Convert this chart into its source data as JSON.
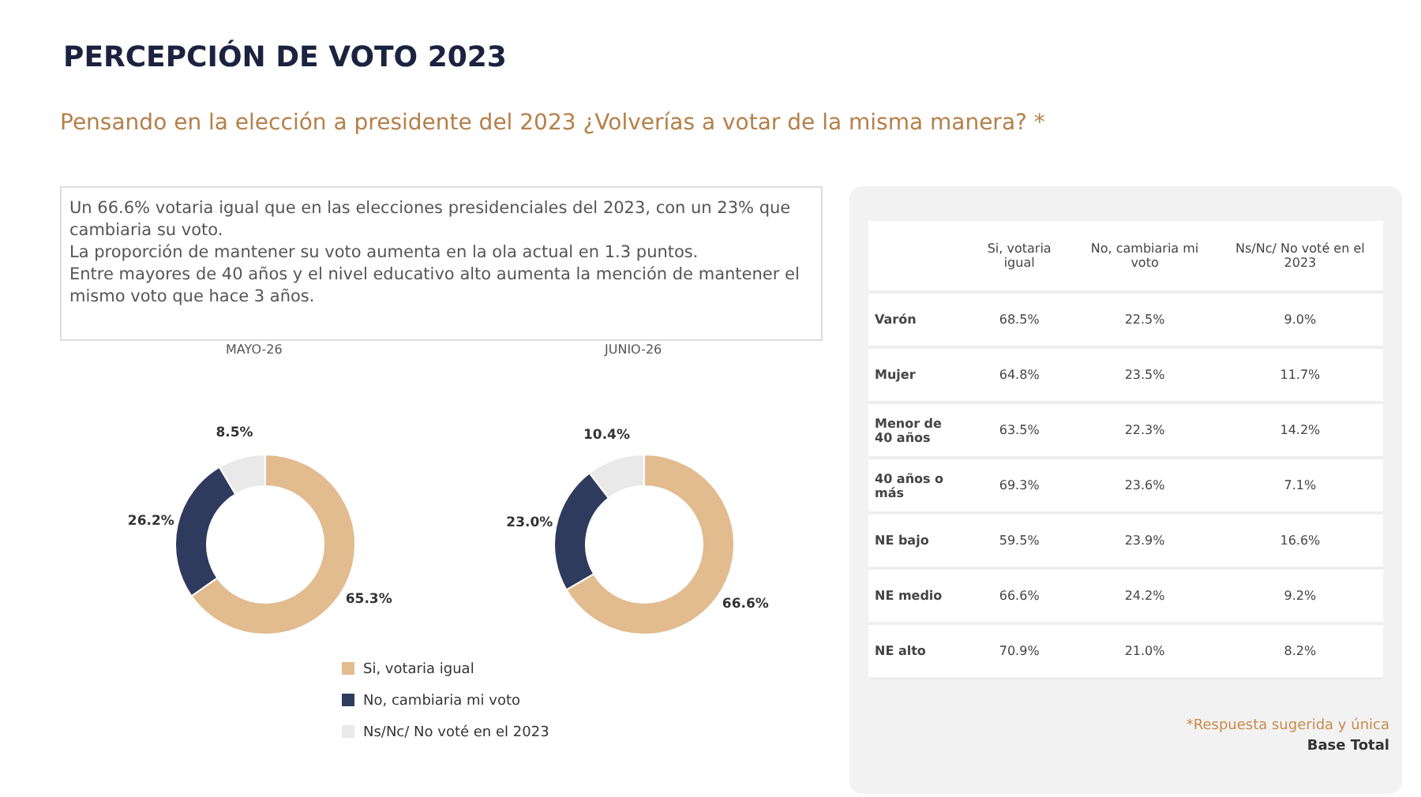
{
  "chart_data": [
    {
      "type": "other",
      "title": "PERCEPCIÓN DE VOTO 2023",
      "subtitle": "Pensando en la elección a presidente del 2023 ¿Volverías a votar de la misma manera? *",
      "annotations": [
        "Un 66.6% votaria igual que en las elecciones presidenciales del 2023, con un 23% que cambiaria su voto.",
        "La proporción de mantener su voto aumenta en la ola actual en 1.3 puntos.",
        "Entre mayores de 40 años y el nivel educativo alto aumenta la mención de mantener el mismo voto que hace 3 años."
      ]
    },
    {
      "type": "donut",
      "title": "MAYO-26",
      "categories": [
        "Si, votaria igual",
        "No, cambiaria mi voto",
        "Ns/Nc/ No voté en el 2023"
      ],
      "values": [
        65.3,
        26.2,
        8.5
      ],
      "value_labels": [
        "65.3%",
        "26.2%",
        "8.5%"
      ],
      "colors": [
        "#e2bb8e",
        "#2e3b5e",
        "#e9e9e9"
      ],
      "legend": "bottom"
    },
    {
      "type": "donut",
      "title": "JUNIO-26",
      "categories": [
        null,
        null,
        null
      ],
      "values": [
        66.6,
        23.0,
        10.4
      ],
      "value_labels": [
        "66.6%",
        "23.0%",
        "10.4%"
      ],
      "colors": [
        "#e2bb8e",
        "#2e3b5e",
        "#e9e9e9"
      ]
    },
    {
      "type": "other",
      "categories": [
        "Si, votaria igual",
        "No, cambiaria mi voto",
        "Ns/Nc/ No voté en el 2023"
      ],
      "y_categories": [
        "Varón",
        "Mujer",
        "Menor de 40 años",
        "40 años o más",
        "NE bajo",
        "NE medio",
        "NE alto"
      ],
      "cell_labels": [
        [
          "68.5%",
          "22.5%",
          "9.0%"
        ],
        [
          "64.8%",
          "23.5%",
          "11.7%"
        ],
        [
          "63.5%",
          "22.3%",
          "14.2%"
        ],
        [
          "69.3%",
          "23.6%",
          "7.1%"
        ],
        [
          "59.5%",
          "23.9%",
          "16.6%"
        ],
        [
          "66.6%",
          "24.2%",
          "9.2%"
        ],
        [
          "70.9%",
          "21.0%",
          "8.2%"
        ]
      ],
      "annotations": [
        "*Respuesta sugerida y única",
        "Base Total"
      ]
    }
  ]
}
